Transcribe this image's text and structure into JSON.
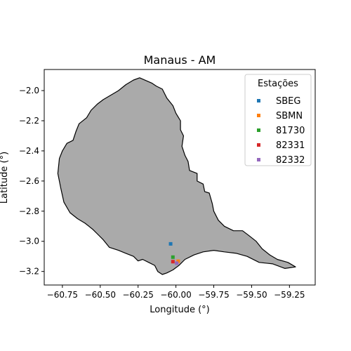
{
  "chart_data": {
    "type": "scatter",
    "title": "Manaus - AM",
    "xlabel": "Longitude (°)",
    "ylabel": "Latitude (°)",
    "xlim": [
      -60.87,
      -59.08
    ],
    "ylim": [
      -3.29,
      -1.86
    ],
    "xticks": [
      -60.75,
      -60.5,
      -60.25,
      -60.0,
      -59.75,
      -59.5,
      -59.25
    ],
    "xtick_labels": [
      "−60.75",
      "−60.50",
      "−60.25",
      "−60.00",
      "−59.75",
      "−59.50",
      "−59.25"
    ],
    "yticks": [
      -2.0,
      -2.2,
      -2.4,
      -2.6,
      -2.8,
      -3.0,
      -3.2
    ],
    "ytick_labels": [
      "−2.0",
      "−2.2",
      "−2.4",
      "−2.6",
      "−2.8",
      "−3.0",
      "−3.2"
    ],
    "grid": false,
    "region_fill_color": "#aaaaaa",
    "region_edge_color": "#000000",
    "region_outline": [
      [
        -60.24,
        -1.915
      ],
      [
        -60.16,
        -1.95
      ],
      [
        -60.13,
        -1.97
      ],
      [
        -60.09,
        -1.99
      ],
      [
        -60.06,
        -2.05
      ],
      [
        -60.02,
        -2.1
      ],
      [
        -60.0,
        -2.15
      ],
      [
        -59.97,
        -2.2
      ],
      [
        -59.97,
        -2.26
      ],
      [
        -59.95,
        -2.3
      ],
      [
        -59.96,
        -2.37
      ],
      [
        -59.94,
        -2.43
      ],
      [
        -59.92,
        -2.47
      ],
      [
        -59.91,
        -2.53
      ],
      [
        -59.86,
        -2.55
      ],
      [
        -59.86,
        -2.6
      ],
      [
        -59.82,
        -2.62
      ],
      [
        -59.81,
        -2.67
      ],
      [
        -59.78,
        -2.68
      ],
      [
        -59.76,
        -2.75
      ],
      [
        -59.75,
        -2.8
      ],
      [
        -59.72,
        -2.86
      ],
      [
        -59.68,
        -2.9
      ],
      [
        -59.62,
        -2.93
      ],
      [
        -59.56,
        -2.93
      ],
      [
        -59.52,
        -2.96
      ],
      [
        -59.47,
        -3.0
      ],
      [
        -59.43,
        -3.05
      ],
      [
        -59.38,
        -3.09
      ],
      [
        -59.33,
        -3.12
      ],
      [
        -59.26,
        -3.14
      ],
      [
        -59.21,
        -3.17
      ],
      [
        -59.28,
        -3.18
      ],
      [
        -59.36,
        -3.15
      ],
      [
        -59.45,
        -3.14
      ],
      [
        -59.53,
        -3.1
      ],
      [
        -59.6,
        -3.08
      ],
      [
        -59.68,
        -3.07
      ],
      [
        -59.75,
        -3.06
      ],
      [
        -59.82,
        -3.07
      ],
      [
        -59.88,
        -3.09
      ],
      [
        -59.94,
        -3.12
      ],
      [
        -59.98,
        -3.16
      ],
      [
        -60.02,
        -3.19
      ],
      [
        -60.06,
        -3.21
      ],
      [
        -60.09,
        -3.22
      ],
      [
        -60.12,
        -3.2
      ],
      [
        -60.14,
        -3.16
      ],
      [
        -60.18,
        -3.14
      ],
      [
        -60.22,
        -3.12
      ],
      [
        -60.25,
        -3.13
      ],
      [
        -60.28,
        -3.1
      ],
      [
        -60.33,
        -3.08
      ],
      [
        -60.38,
        -3.06
      ],
      [
        -60.44,
        -3.04
      ],
      [
        -60.48,
        -2.99
      ],
      [
        -60.52,
        -2.95
      ],
      [
        -60.55,
        -2.92
      ],
      [
        -60.6,
        -2.88
      ],
      [
        -60.65,
        -2.85
      ],
      [
        -60.7,
        -2.81
      ],
      [
        -60.74,
        -2.74
      ],
      [
        -60.76,
        -2.65
      ],
      [
        -60.78,
        -2.55
      ],
      [
        -60.77,
        -2.45
      ],
      [
        -60.75,
        -2.4
      ],
      [
        -60.72,
        -2.35
      ],
      [
        -60.68,
        -2.33
      ],
      [
        -60.66,
        -2.27
      ],
      [
        -60.64,
        -2.22
      ],
      [
        -60.59,
        -2.18
      ],
      [
        -60.56,
        -2.13
      ],
      [
        -60.52,
        -2.09
      ],
      [
        -60.48,
        -2.06
      ],
      [
        -60.43,
        -2.03
      ],
      [
        -60.38,
        -2.0
      ],
      [
        -60.33,
        -1.96
      ],
      [
        -60.28,
        -1.93
      ]
    ],
    "legend": {
      "title": "Estações",
      "placement": "top-right"
    },
    "series": [
      {
        "name": "SBEG",
        "color": "#1f77b4",
        "points": [
          [
            -60.035,
            -3.017
          ]
        ]
      },
      {
        "name": "SBMN",
        "color": "#ff7f0e",
        "points": [
          [
            -59.985,
            -3.132
          ]
        ]
      },
      {
        "name": "81730",
        "color": "#2ca02c",
        "points": [
          [
            -60.02,
            -3.105
          ]
        ]
      },
      {
        "name": "82331",
        "color": "#d62728",
        "points": [
          [
            -60.02,
            -3.135
          ]
        ]
      },
      {
        "name": "82332",
        "color": "#9467bd",
        "points": [
          [
            -59.995,
            -3.145
          ]
        ]
      }
    ]
  }
}
